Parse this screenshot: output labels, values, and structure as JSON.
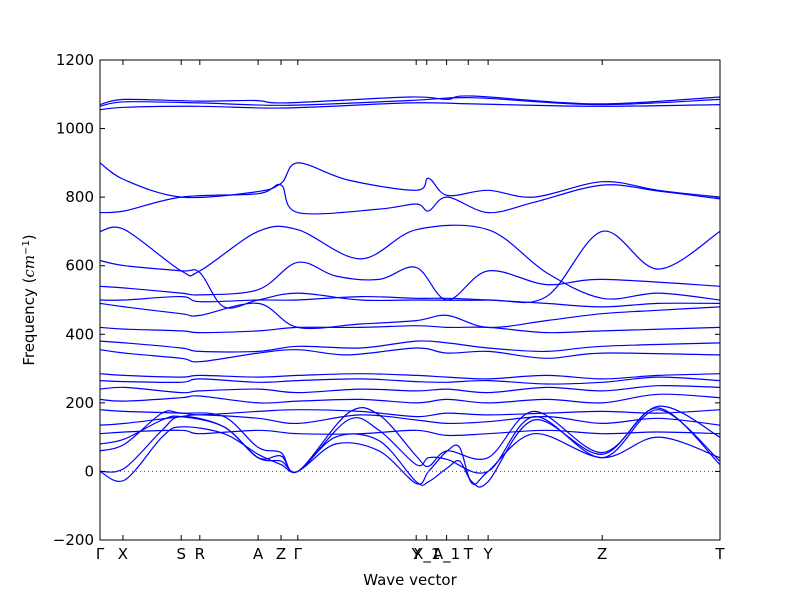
{
  "chart_data": {
    "type": "line",
    "title": "",
    "xlabel": "Wave vector",
    "ylabel": "Frequency (cm⁻¹)",
    "ylabel_parts": {
      "prefix": "Frequency (",
      "unit_base": "cm",
      "unit_exp": "−1",
      "suffix": ")"
    },
    "xlim": [
      0,
      1
    ],
    "ylim": [
      -200,
      1200
    ],
    "yticks": [
      -200,
      0,
      200,
      400,
      600,
      800,
      1000,
      1200
    ],
    "xticks": [
      {
        "label": "Γ",
        "x": 0.0
      },
      {
        "label": "X",
        "x": 0.037
      },
      {
        "label": "S",
        "x": 0.131
      },
      {
        "label": "R",
        "x": 0.161
      },
      {
        "label": "A",
        "x": 0.255
      },
      {
        "label": "Z",
        "x": 0.292
      },
      {
        "label": "Γ",
        "x": 0.319
      },
      {
        "label": "Y",
        "x": 0.51
      },
      {
        "label": "X_1",
        "x": 0.527
      },
      {
        "label": "A_1",
        "x": 0.559
      },
      {
        "label": "T",
        "x": 0.594
      },
      {
        "label": "Y",
        "x": 0.626
      },
      {
        "label": "Z",
        "x": 0.81
      },
      {
        "label": "T",
        "x": 1.0
      }
    ],
    "zero_line": 0,
    "series_color": "#0000ff",
    "bands": [
      [
        [
          0,
          1055
        ],
        [
          0.04,
          1062
        ],
        [
          0.16,
          1065
        ],
        [
          0.3,
          1060
        ],
        [
          0.5,
          1075
        ],
        [
          0.6,
          1072
        ],
        [
          0.8,
          1065
        ],
        [
          1,
          1070
        ]
      ],
      [
        [
          0,
          1065
        ],
        [
          0.04,
          1078
        ],
        [
          0.16,
          1075
        ],
        [
          0.3,
          1068
        ],
        [
          0.5,
          1082
        ],
        [
          0.6,
          1090
        ],
        [
          0.8,
          1070
        ],
        [
          1,
          1085
        ]
      ],
      [
        [
          0,
          1070
        ],
        [
          0.04,
          1085
        ],
        [
          0.16,
          1080
        ],
        [
          0.25,
          1082
        ],
        [
          0.3,
          1075
        ],
        [
          0.5,
          1092
        ],
        [
          0.56,
          1085
        ],
        [
          0.6,
          1095
        ],
        [
          0.8,
          1072
        ],
        [
          1,
          1092
        ]
      ],
      [
        [
          0,
          900
        ],
        [
          0.04,
          850
        ],
        [
          0.131,
          800
        ],
        [
          0.25,
          815
        ],
        [
          0.292,
          840
        ],
        [
          0.319,
          900
        ],
        [
          0.4,
          850
        ],
        [
          0.51,
          820
        ],
        [
          0.53,
          855
        ],
        [
          0.56,
          805
        ],
        [
          0.626,
          820
        ],
        [
          0.7,
          800
        ],
        [
          0.81,
          845
        ],
        [
          0.9,
          820
        ],
        [
          1,
          800
        ]
      ],
      [
        [
          0,
          755
        ],
        [
          0.04,
          760
        ],
        [
          0.131,
          800
        ],
        [
          0.255,
          810
        ],
        [
          0.292,
          835
        ],
        [
          0.319,
          755
        ],
        [
          0.45,
          765
        ],
        [
          0.51,
          780
        ],
        [
          0.53,
          760
        ],
        [
          0.56,
          800
        ],
        [
          0.626,
          755
        ],
        [
          0.7,
          785
        ],
        [
          0.81,
          835
        ],
        [
          0.9,
          818
        ],
        [
          1,
          795
        ]
      ],
      [
        [
          0,
          700
        ],
        [
          0.04,
          705
        ],
        [
          0.131,
          585
        ],
        [
          0.161,
          585
        ],
        [
          0.255,
          700
        ],
        [
          0.319,
          705
        ],
        [
          0.42,
          620
        ],
        [
          0.51,
          705
        ],
        [
          0.626,
          705
        ],
        [
          0.72,
          580
        ],
        [
          0.81,
          505
        ],
        [
          0.9,
          520
        ],
        [
          1,
          500
        ]
      ],
      [
        [
          0,
          615
        ],
        [
          0.04,
          600
        ],
        [
          0.131,
          585
        ],
        [
          0.161,
          580
        ],
        [
          0.2,
          480
        ],
        [
          0.255,
          500
        ],
        [
          0.319,
          520
        ],
        [
          0.42,
          500
        ],
        [
          0.51,
          500
        ],
        [
          0.626,
          500
        ],
        [
          0.72,
          510
        ],
        [
          0.81,
          700
        ],
        [
          0.9,
          590
        ],
        [
          1,
          700
        ]
      ],
      [
        [
          0,
          540
        ],
        [
          0.04,
          535
        ],
        [
          0.131,
          520
        ],
        [
          0.161,
          515
        ],
        [
          0.255,
          530
        ],
        [
          0.319,
          610
        ],
        [
          0.38,
          570
        ],
        [
          0.45,
          560
        ],
        [
          0.51,
          595
        ],
        [
          0.56,
          500
        ],
        [
          0.626,
          585
        ],
        [
          0.72,
          545
        ],
        [
          0.81,
          560
        ],
        [
          1,
          540
        ]
      ],
      [
        [
          0,
          500
        ],
        [
          0.04,
          500
        ],
        [
          0.131,
          510
        ],
        [
          0.161,
          495
        ],
        [
          0.255,
          500
        ],
        [
          0.319,
          500
        ],
        [
          0.42,
          510
        ],
        [
          0.51,
          505
        ],
        [
          0.56,
          505
        ],
        [
          0.626,
          500
        ],
        [
          0.72,
          490
        ],
        [
          0.81,
          480
        ],
        [
          0.9,
          490
        ],
        [
          1,
          490
        ]
      ],
      [
        [
          0,
          490
        ],
        [
          0.04,
          480
        ],
        [
          0.131,
          460
        ],
        [
          0.161,
          455
        ],
        [
          0.255,
          490
        ],
        [
          0.319,
          420
        ],
        [
          0.42,
          430
        ],
        [
          0.51,
          440
        ],
        [
          0.56,
          455
        ],
        [
          0.626,
          420
        ],
        [
          0.72,
          440
        ],
        [
          0.81,
          460
        ],
        [
          0.9,
          470
        ],
        [
          1,
          480
        ]
      ],
      [
        [
          0,
          420
        ],
        [
          0.04,
          415
        ],
        [
          0.131,
          410
        ],
        [
          0.161,
          405
        ],
        [
          0.255,
          410
        ],
        [
          0.319,
          420
        ],
        [
          0.42,
          420
        ],
        [
          0.51,
          425
        ],
        [
          0.56,
          420
        ],
        [
          0.626,
          420
        ],
        [
          0.72,
          405
        ],
        [
          0.81,
          410
        ],
        [
          1,
          420
        ]
      ],
      [
        [
          0,
          380
        ],
        [
          0.04,
          375
        ],
        [
          0.131,
          360
        ],
        [
          0.161,
          350
        ],
        [
          0.255,
          350
        ],
        [
          0.319,
          365
        ],
        [
          0.42,
          360
        ],
        [
          0.51,
          380
        ],
        [
          0.56,
          375
        ],
        [
          0.626,
          360
        ],
        [
          0.72,
          350
        ],
        [
          0.81,
          365
        ],
        [
          1,
          375
        ]
      ],
      [
        [
          0,
          355
        ],
        [
          0.04,
          345
        ],
        [
          0.131,
          330
        ],
        [
          0.161,
          320
        ],
        [
          0.255,
          345
        ],
        [
          0.319,
          355
        ],
        [
          0.4,
          340
        ],
        [
          0.51,
          360
        ],
        [
          0.56,
          345
        ],
        [
          0.626,
          350
        ],
        [
          0.72,
          330
        ],
        [
          0.81,
          345
        ],
        [
          1,
          340
        ]
      ],
      [
        [
          0,
          285
        ],
        [
          0.04,
          280
        ],
        [
          0.131,
          275
        ],
        [
          0.161,
          280
        ],
        [
          0.255,
          275
        ],
        [
          0.319,
          280
        ],
        [
          0.42,
          285
        ],
        [
          0.51,
          280
        ],
        [
          0.56,
          275
        ],
        [
          0.626,
          270
        ],
        [
          0.72,
          280
        ],
        [
          0.81,
          270
        ],
        [
          0.9,
          280
        ],
        [
          1,
          285
        ]
      ],
      [
        [
          0,
          265
        ],
        [
          0.04,
          262
        ],
        [
          0.131,
          260
        ],
        [
          0.161,
          270
        ],
        [
          0.255,
          260
        ],
        [
          0.319,
          265
        ],
        [
          0.42,
          270
        ],
        [
          0.51,
          262
        ],
        [
          0.56,
          260
        ],
        [
          0.626,
          265
        ],
        [
          0.72,
          255
        ],
        [
          0.81,
          260
        ],
        [
          0.9,
          275
        ],
        [
          1,
          265
        ]
      ],
      [
        [
          0,
          240
        ],
        [
          0.04,
          245
        ],
        [
          0.131,
          230
        ],
        [
          0.161,
          235
        ],
        [
          0.255,
          240
        ],
        [
          0.319,
          230
        ],
        [
          0.42,
          240
        ],
        [
          0.51,
          235
        ],
        [
          0.56,
          240
        ],
        [
          0.626,
          230
        ],
        [
          0.72,
          245
        ],
        [
          0.81,
          235
        ],
        [
          0.9,
          250
        ],
        [
          1,
          245
        ]
      ],
      [
        [
          0,
          210
        ],
        [
          0.04,
          205
        ],
        [
          0.131,
          215
        ],
        [
          0.161,
          220
        ],
        [
          0.255,
          200
        ],
        [
          0.319,
          205
        ],
        [
          0.42,
          210
        ],
        [
          0.51,
          200
        ],
        [
          0.56,
          210
        ],
        [
          0.626,
          200
        ],
        [
          0.72,
          210
        ],
        [
          0.81,
          200
        ],
        [
          0.9,
          225
        ],
        [
          1,
          215
        ]
      ],
      [
        [
          0,
          180
        ],
        [
          0.04,
          175
        ],
        [
          0.131,
          170
        ],
        [
          0.161,
          165
        ],
        [
          0.255,
          175
        ],
        [
          0.319,
          180
        ],
        [
          0.42,
          175
        ],
        [
          0.51,
          160
        ],
        [
          0.56,
          170
        ],
        [
          0.626,
          165
        ],
        [
          0.72,
          170
        ],
        [
          0.81,
          175
        ],
        [
          0.9,
          170
        ],
        [
          1,
          180
        ]
      ],
      [
        [
          0,
          135
        ],
        [
          0.04,
          140
        ],
        [
          0.131,
          160
        ],
        [
          0.161,
          165
        ],
        [
          0.255,
          155
        ],
        [
          0.319,
          140
        ],
        [
          0.42,
          165
        ],
        [
          0.51,
          150
        ],
        [
          0.56,
          140
        ],
        [
          0.626,
          145
        ],
        [
          0.72,
          160
        ],
        [
          0.81,
          140
        ],
        [
          0.9,
          155
        ],
        [
          1,
          135
        ]
      ],
      [
        [
          0,
          110
        ],
        [
          0.04,
          115
        ],
        [
          0.131,
          120
        ],
        [
          0.161,
          110
        ],
        [
          0.255,
          120
        ],
        [
          0.319,
          110
        ],
        [
          0.42,
          110
        ],
        [
          0.51,
          120
        ],
        [
          0.56,
          105
        ],
        [
          0.626,
          110
        ],
        [
          0.72,
          120
        ],
        [
          0.81,
          110
        ],
        [
          0.9,
          115
        ],
        [
          1,
          110
        ]
      ],
      [
        [
          0,
          80
        ],
        [
          0.04,
          95
        ],
        [
          0.1,
          150
        ],
        [
          0.131,
          160
        ],
        [
          0.2,
          130
        ],
        [
          0.255,
          40
        ],
        [
          0.292,
          45
        ],
        [
          0.319,
          0
        ],
        [
          0.4,
          150
        ],
        [
          0.45,
          120
        ],
        [
          0.51,
          20
        ],
        [
          0.53,
          40
        ],
        [
          0.56,
          35
        ],
        [
          0.626,
          0
        ],
        [
          0.7,
          160
        ],
        [
          0.81,
          40
        ],
        [
          0.9,
          180
        ],
        [
          1,
          30
        ]
      ],
      [
        [
          0,
          60
        ],
        [
          0.04,
          80
        ],
        [
          0.1,
          170
        ],
        [
          0.131,
          170
        ],
        [
          0.2,
          160
        ],
        [
          0.255,
          70
        ],
        [
          0.292,
          55
        ],
        [
          0.319,
          0
        ],
        [
          0.4,
          170
        ],
        [
          0.45,
          165
        ],
        [
          0.51,
          45
        ],
        [
          0.53,
          15
        ],
        [
          0.56,
          60
        ],
        [
          0.626,
          40
        ],
        [
          0.7,
          175
        ],
        [
          0.81,
          55
        ],
        [
          0.9,
          190
        ],
        [
          1,
          100
        ]
      ],
      [
        [
          0,
          0
        ],
        [
          0.04,
          10
        ],
        [
          0.1,
          120
        ],
        [
          0.131,
          160
        ],
        [
          0.2,
          130
        ],
        [
          0.255,
          40
        ],
        [
          0.292,
          30
        ],
        [
          0.319,
          0
        ],
        [
          0.38,
          100
        ],
        [
          0.45,
          90
        ],
        [
          0.51,
          -30
        ],
        [
          0.53,
          -30
        ],
        [
          0.56,
          10
        ],
        [
          0.58,
          30
        ],
        [
          0.6,
          -30
        ],
        [
          0.626,
          -30
        ],
        [
          0.7,
          150
        ],
        [
          0.81,
          50
        ],
        [
          0.9,
          185
        ],
        [
          1,
          20
        ]
      ],
      [
        [
          0,
          0
        ],
        [
          0.04,
          -25
        ],
        [
          0.1,
          100
        ],
        [
          0.131,
          130
        ],
        [
          0.2,
          110
        ],
        [
          0.255,
          50
        ],
        [
          0.292,
          20
        ],
        [
          0.319,
          0
        ],
        [
          0.38,
          80
        ],
        [
          0.45,
          60
        ],
        [
          0.51,
          -35
        ],
        [
          0.53,
          0
        ],
        [
          0.56,
          60
        ],
        [
          0.58,
          70
        ],
        [
          0.6,
          -35
        ],
        [
          0.626,
          0
        ],
        [
          0.7,
          110
        ],
        [
          0.81,
          40
        ],
        [
          0.9,
          100
        ],
        [
          1,
          40
        ]
      ]
    ]
  }
}
